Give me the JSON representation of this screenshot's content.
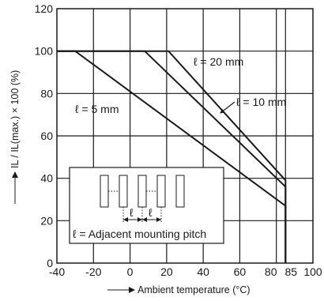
{
  "chart_data": {
    "type": "line",
    "xlabel": "Ambient temperature (°C)",
    "ylabel": "IL / IL(max.) × 100 (%)",
    "xlim": [
      -40,
      100
    ],
    "ylim": [
      0,
      120
    ],
    "x_ticks": [
      -40,
      -20,
      0,
      20,
      40,
      60,
      80,
      85,
      100
    ],
    "x_tick_labels": [
      "-40",
      "-20",
      "0",
      "20",
      "40",
      "60",
      "80",
      "85",
      "100"
    ],
    "y_ticks": [
      0,
      20,
      40,
      60,
      80,
      100,
      120
    ],
    "y_tick_labels": [
      "0",
      "20",
      "40",
      "60",
      "80",
      "100",
      "120"
    ],
    "grid": true,
    "series": [
      {
        "name": "ℓ = 5 mm",
        "points": [
          [
            -40,
            100
          ],
          [
            -30,
            100
          ],
          [
            85,
            27
          ],
          [
            85,
            0
          ]
        ]
      },
      {
        "name": "ℓ = 10 mm",
        "points": [
          [
            -40,
            100
          ],
          [
            8,
            100
          ],
          [
            85,
            36
          ],
          [
            85,
            0
          ]
        ]
      },
      {
        "name": "ℓ = 20 mm",
        "points": [
          [
            -40,
            100
          ],
          [
            21,
            100
          ],
          [
            85,
            39
          ],
          [
            85,
            0
          ]
        ]
      }
    ],
    "annotations": {
      "l5": "ℓ = 5 mm",
      "l10": "ℓ = 10 mm",
      "l20": "ℓ = 20 mm"
    },
    "inset": {
      "pitch_symbol": "ℓ",
      "caption": "ℓ = Adjacent mounting pitch"
    }
  }
}
